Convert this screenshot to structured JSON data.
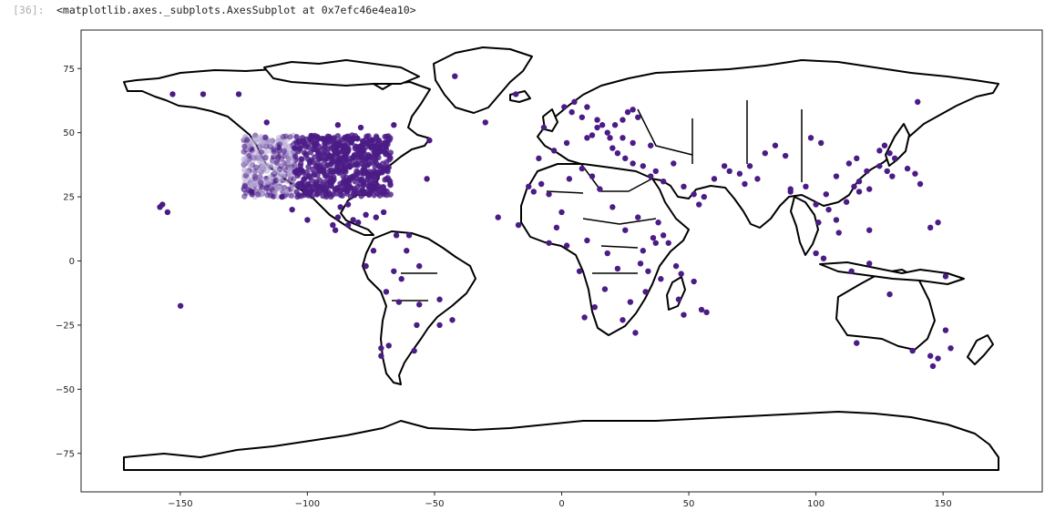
{
  "cell": {
    "prompt": "[36]:",
    "output_repr": "<matplotlib.axes._subplots.AxesSubplot at 0x7efc46e4ea10>"
  },
  "chart_data": {
    "type": "scatter",
    "title": "",
    "xlabel": "",
    "ylabel": "",
    "xlim": [
      -189,
      189
    ],
    "ylim": [
      -90,
      90
    ],
    "grid": false,
    "xticks": [
      -150,
      -100,
      -50,
      0,
      50,
      100,
      150
    ],
    "yticks": [
      75,
      50,
      25,
      0,
      -25,
      -50,
      -75
    ],
    "xtick_labels": [
      "−150",
      "−100",
      "−50",
      "0",
      "50",
      "100",
      "150"
    ],
    "ytick_labels": [
      "75",
      "50",
      "25",
      "0",
      "−25",
      "−50",
      "−75"
    ],
    "basemap": "world country boundaries (black outlines, white fill)",
    "point_color": "#4b1c86",
    "point_color_light": "#b7a9d6",
    "series": [
      {
        "x": [
          -149.9,
          -42,
          -18,
          -30,
          -116,
          -88,
          -79,
          -66,
          -52,
          -105,
          -53,
          -122,
          -110,
          -153,
          -141,
          -127,
          -100,
          -88,
          -84,
          -89,
          -90,
          -106,
          -87,
          -84,
          -82,
          -80,
          -73,
          -70,
          -77,
          -65,
          -60,
          -61,
          -25,
          -17,
          -56,
          -63,
          -66,
          -74,
          -77,
          -69,
          -56,
          -48,
          -43,
          -64,
          -57,
          -48,
          -68,
          -71,
          -71,
          -58,
          -158,
          -155,
          -157
        ],
        "y": [
          -17.5,
          72,
          65,
          54,
          54,
          53,
          52,
          53,
          47,
          44,
          32,
          27,
          25,
          65,
          65,
          65,
          16,
          17,
          14,
          12,
          14,
          20,
          21,
          22,
          16,
          15,
          17,
          19,
          18,
          10,
          10,
          4,
          17,
          14,
          -2,
          -7,
          -4,
          4,
          -2,
          -12,
          -17,
          -15,
          -23,
          -16,
          -25,
          -25,
          -33,
          -34,
          -37,
          -35,
          21,
          19,
          22
        ]
      },
      {
        "x": [
          -9,
          -7,
          -3,
          2,
          10,
          12,
          14,
          19,
          21,
          24,
          26,
          28,
          30,
          35,
          10,
          5,
          1,
          4,
          8,
          14,
          16,
          18,
          24,
          28,
          20,
          22,
          25,
          28,
          32,
          35,
          37,
          40,
          44,
          48,
          52,
          54,
          56,
          60,
          64,
          66,
          70,
          72,
          74,
          77,
          80,
          84,
          88,
          90,
          96,
          100,
          104,
          108,
          113,
          117,
          121,
          125,
          128,
          130,
          136,
          139,
          141,
          108,
          112,
          115,
          117,
          120,
          102,
          98,
          116,
          90,
          101,
          105,
          109,
          121,
          125,
          127,
          129,
          131,
          140,
          145,
          148,
          151,
          103,
          100,
          114,
          121,
          151,
          145,
          138,
          153,
          148,
          116,
          146,
          129
        ],
        "y": [
          40,
          52,
          43,
          46,
          48,
          49,
          52,
          48,
          53,
          55,
          58,
          59,
          56,
          45,
          60,
          62,
          60,
          58,
          56,
          55,
          53,
          50,
          48,
          46,
          44,
          42,
          40,
          38,
          37,
          33,
          35,
          31,
          38,
          29,
          26,
          22,
          25,
          32,
          37,
          35,
          34,
          30,
          37,
          32,
          42,
          45,
          41,
          27,
          29,
          22,
          26,
          33,
          38,
          31,
          28,
          37,
          35,
          33,
          36,
          34,
          30,
          16,
          23,
          29,
          27,
          35,
          46,
          48,
          40,
          28,
          15,
          20,
          11,
          12,
          43,
          45,
          42,
          40,
          62,
          13,
          15,
          -6,
          1,
          3,
          -4,
          -1,
          -27,
          -37,
          -35,
          -34,
          -38,
          -32,
          -41,
          -13
        ]
      },
      {
        "x": [
          -13,
          -11,
          -8,
          -5,
          3,
          8,
          12,
          15,
          20,
          25,
          30,
          32,
          36,
          38,
          40,
          42,
          45,
          47,
          52,
          55,
          57,
          33,
          27,
          24,
          29,
          17,
          13,
          9,
          7,
          2,
          -2,
          -5,
          0,
          10,
          18,
          22,
          31,
          34,
          37,
          39,
          46,
          48
        ],
        "y": [
          29,
          27,
          30,
          26,
          32,
          36,
          33,
          28,
          21,
          12,
          17,
          4,
          9,
          15,
          10,
          7,
          -2,
          -5,
          -8,
          -19,
          -20,
          -12,
          -16,
          -23,
          -28,
          -11,
          -18,
          -22,
          -4,
          6,
          13,
          7,
          19,
          8,
          3,
          -3,
          -1,
          -4,
          7,
          -7,
          -15,
          -21
        ]
      }
    ],
    "dense_cluster": {
      "label": "",
      "x_range": [
        -125,
        -67
      ],
      "y_range": [
        25,
        49
      ]
    }
  }
}
